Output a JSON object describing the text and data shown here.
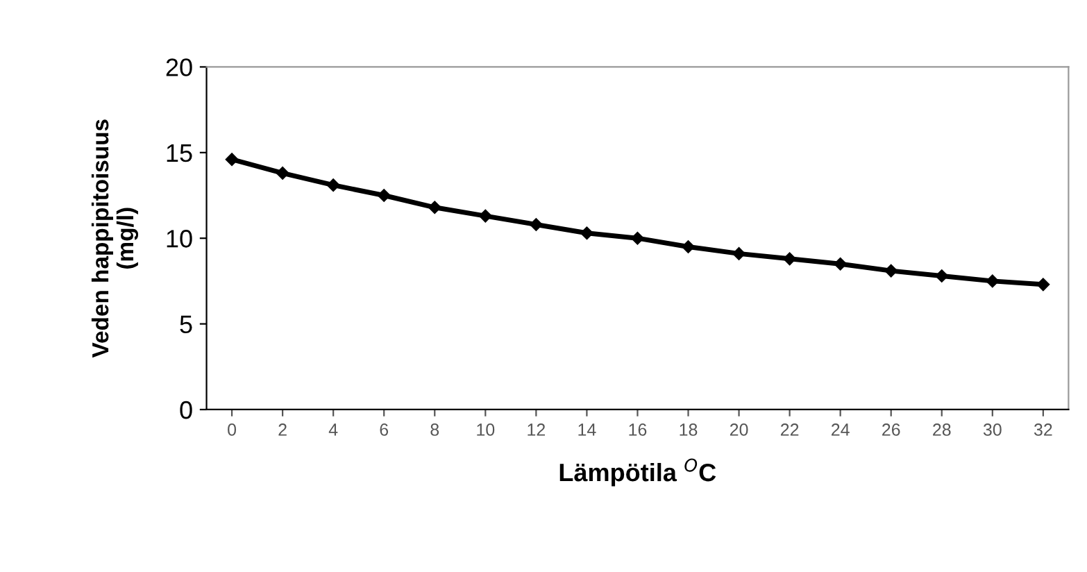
{
  "chart_data": {
    "type": "line",
    "xlabel": "Lämpötila $^{O}$C",
    "ylabel": "Veden happipitoisuus\n(mg/l)",
    "categories": [
      "0",
      "2",
      "4",
      "6",
      "8",
      "10",
      "12",
      "14",
      "16",
      "18",
      "20",
      "22",
      "24",
      "26",
      "28",
      "30",
      "32"
    ],
    "series": [
      {
        "color": "#000000",
        "values": [
          14.6,
          13.8,
          13.1,
          12.5,
          11.8,
          11.3,
          10.8,
          10.3,
          10.0,
          9.5,
          9.1,
          8.8,
          8.5,
          8.1,
          7.8,
          7.5,
          7.3
        ]
      }
    ],
    "ylim": [
      0,
      20
    ],
    "yticks": [
      0,
      5,
      10,
      15,
      20
    ],
    "grid": false,
    "legend": false,
    "marker": "diamond",
    "line_style": "solid"
  }
}
